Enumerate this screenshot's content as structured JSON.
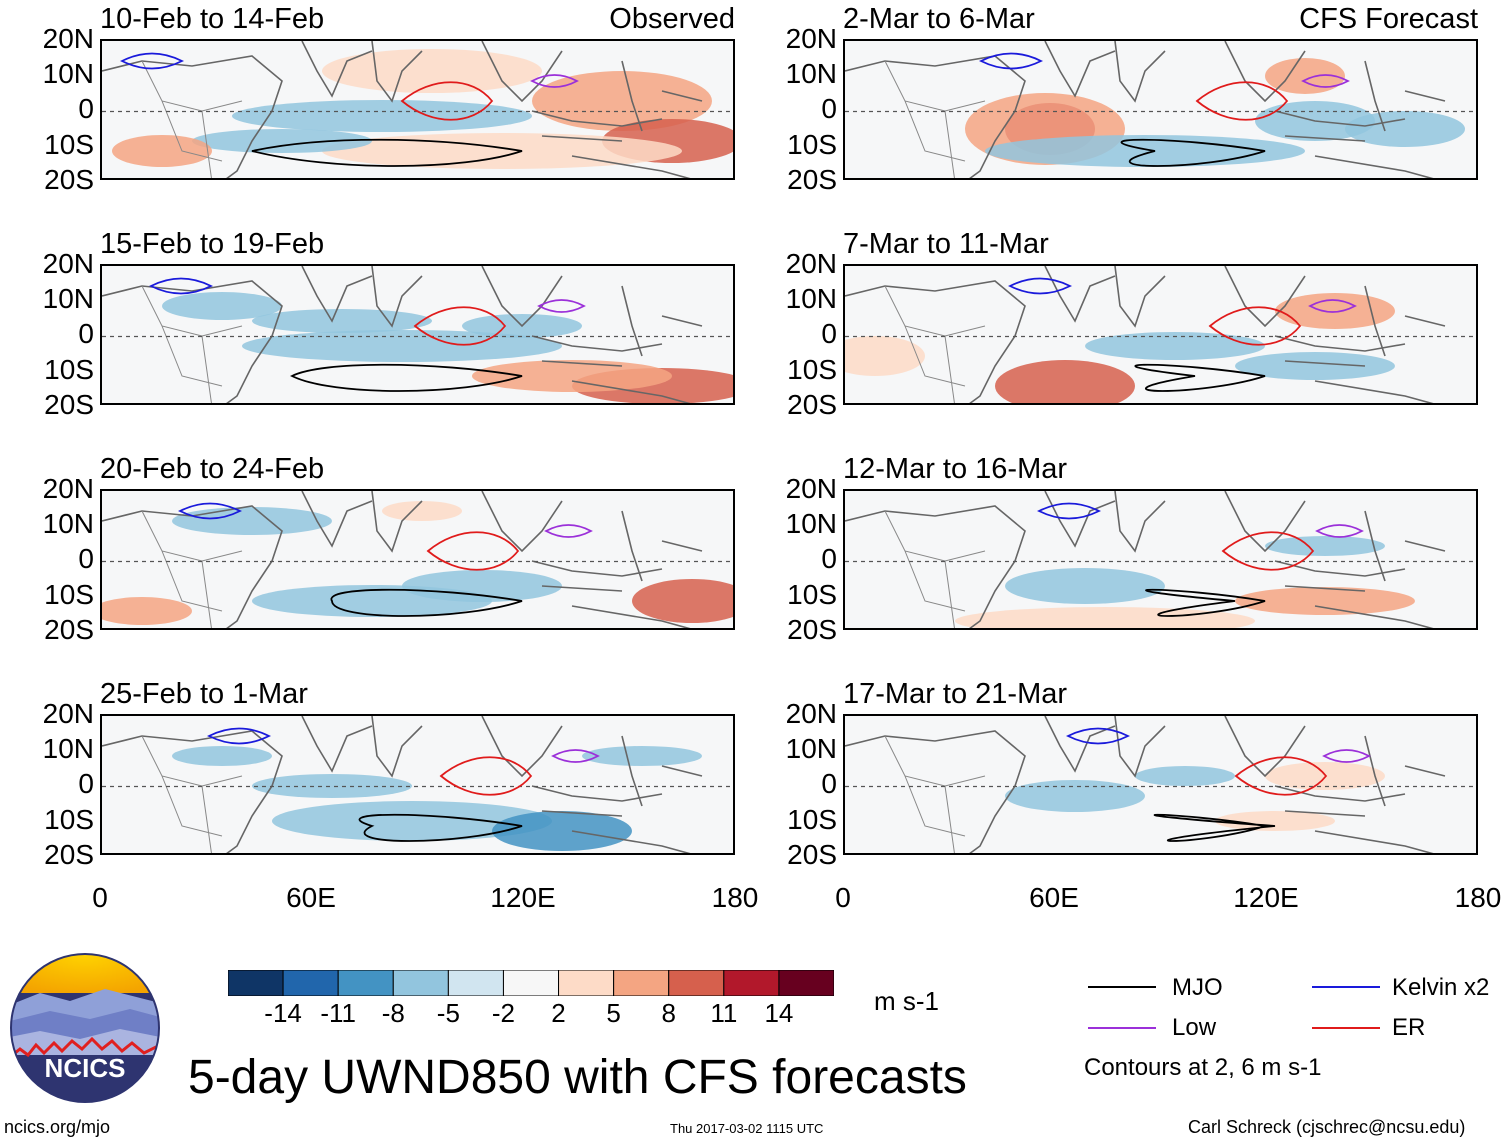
{
  "chart_data": {
    "type": "heatmap",
    "title": "5-day UWND850 with CFS forecasts",
    "variable": "UWND850",
    "units": "m s-1",
    "xlim": [
      0,
      180
    ],
    "ylim": [
      -20,
      20
    ],
    "x_ticks": [
      "0",
      "60E",
      "120E",
      "180"
    ],
    "y_ticks": [
      "20N",
      "10N",
      "0",
      "10S",
      "20S"
    ],
    "colorbar": {
      "ticks": [
        "-14",
        "-11",
        "-8",
        "-5",
        "-2",
        "2",
        "5",
        "8",
        "11",
        "14"
      ],
      "colors": [
        "#0f3566",
        "#2166ac",
        "#4393c3",
        "#92c5de",
        "#d1e5f0",
        "#f7f7f7",
        "#fddbc7",
        "#f4a582",
        "#d6604d",
        "#b2182b",
        "#67001f"
      ],
      "units_label": "m s-1"
    },
    "left_column_label": "Observed",
    "right_column_label": "CFS Forecast",
    "panels": [
      {
        "title": "10-Feb to 14-Feb",
        "column": "observed"
      },
      {
        "title": "15-Feb to 19-Feb",
        "column": "observed"
      },
      {
        "title": "20-Feb to 24-Feb",
        "column": "observed"
      },
      {
        "title": "25-Feb to 1-Mar",
        "column": "observed"
      },
      {
        "title": "2-Mar to 6-Mar",
        "column": "forecast"
      },
      {
        "title": "7-Mar to 11-Mar",
        "column": "forecast"
      },
      {
        "title": "12-Mar to 16-Mar",
        "column": "forecast"
      },
      {
        "title": "17-Mar to 21-Mar",
        "column": "forecast"
      }
    ],
    "legend": [
      {
        "label": "MJO",
        "color": "#000000"
      },
      {
        "label": "Kelvin x2",
        "color": "#1a1adb"
      },
      {
        "label": "Low",
        "color": "#9b30d9"
      },
      {
        "label": "ER",
        "color": "#e01b1b"
      }
    ],
    "contour_note": "Contours at 2, 6 m s-1"
  },
  "footer": {
    "org": "NCICS",
    "url": "ncics.org/mjo",
    "timestamp": "Thu 2017-03-02 1115 UTC",
    "credit": "Carl Schreck (cjschrec@ncsu.edu)"
  }
}
